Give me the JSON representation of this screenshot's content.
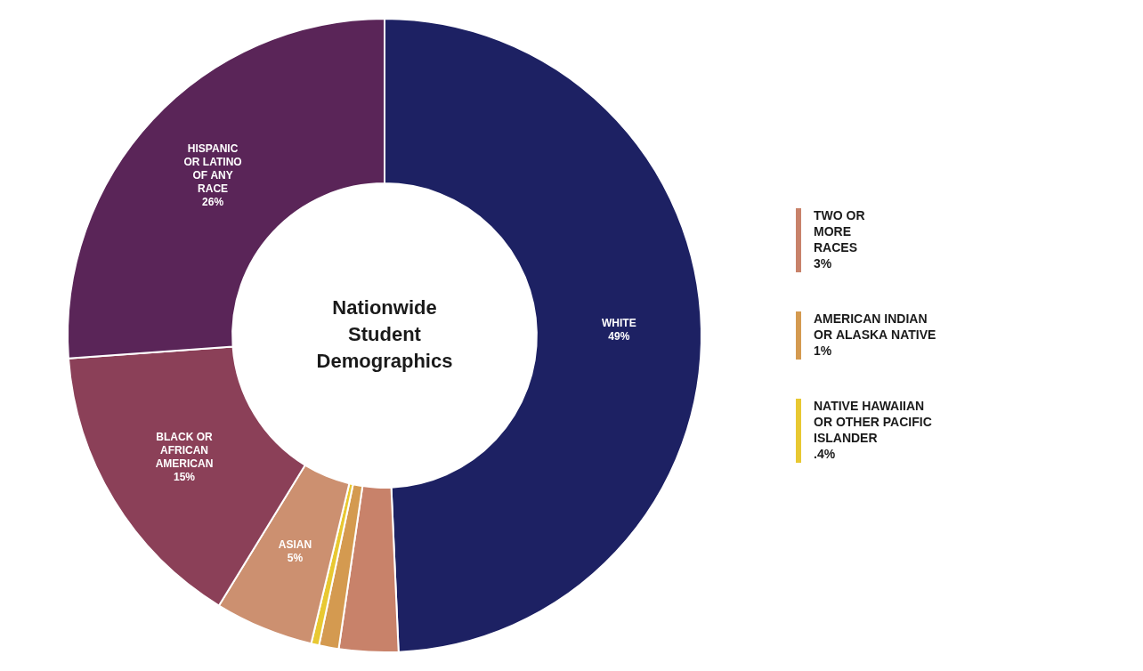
{
  "chart_data": {
    "type": "doughnut",
    "title": "Nationwide\nStudent\nDemographics",
    "categories": [
      "WHITE",
      "TWO OR\nMORE\nRACES",
      "AMERICAN INDIAN\nOR ALASKA NATIVE",
      "NATIVE HAWAIIAN\nOR OTHER PACIFIC\nISLANDER",
      "ASIAN",
      "BLACK OR\nAFRICAN\nAMERICAN",
      "HISPANIC\nOR LATINO\nOF ANY\nRACE"
    ],
    "values": [
      49,
      3,
      1,
      0.4,
      5,
      15,
      26
    ],
    "value_labels": [
      "49%",
      "3%",
      "1%",
      ".4%",
      "5%",
      "15%",
      "26%"
    ],
    "colors": [
      "#1d2163",
      "#c8826a",
      "#d49a50",
      "#e8c832",
      "#cc9070",
      "#8b4058",
      "#5a2558"
    ],
    "data_labels": true,
    "legend": "right"
  }
}
